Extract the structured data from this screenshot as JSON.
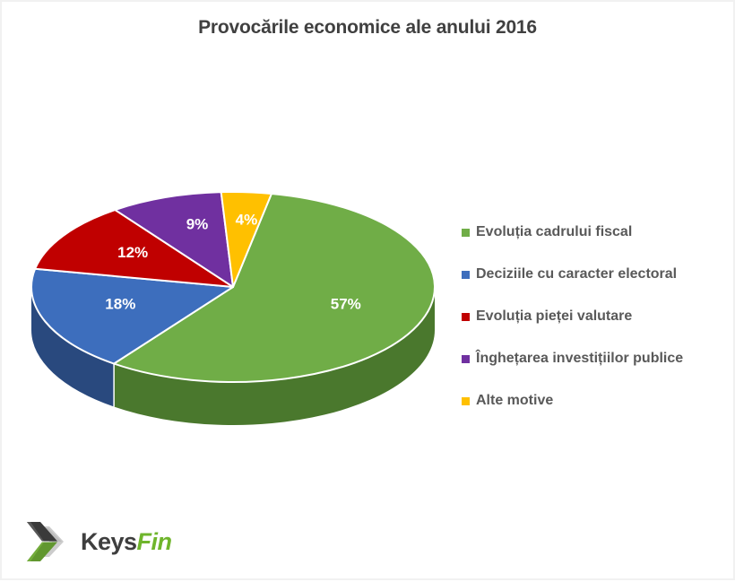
{
  "title": "Provocările economice ale anului 2016",
  "chart_data": {
    "type": "pie",
    "style": "3d",
    "title": "Provocările economice ale anului 2016",
    "categories": [
      "Evoluția cadrului fiscal",
      "Deciziile cu caracter electoral",
      "Evoluția pieței valutare",
      "Înghețarea investițiilor publice",
      "Alte motive"
    ],
    "values": [
      57,
      18,
      12,
      9,
      4
    ],
    "labels": [
      "57%",
      "18%",
      "12%",
      "9%",
      "4%"
    ],
    "colors": [
      "#70AD47",
      "#3D6EBD",
      "#C00000",
      "#7030A0",
      "#FFC000"
    ],
    "side_colors": [
      "#4A782D",
      "#29497E",
      "#8A0000",
      "#4A1F6B",
      "#B38600"
    ],
    "start_angle_deg": 11,
    "legend_position": "right",
    "data_label_color": "#FFFFFF",
    "legend_text_color": "#595959",
    "title_color": "#404040"
  },
  "logo": {
    "text_primary": "Keys",
    "text_secondary": "Fin",
    "icon": "keysfin-chevron-icon"
  }
}
